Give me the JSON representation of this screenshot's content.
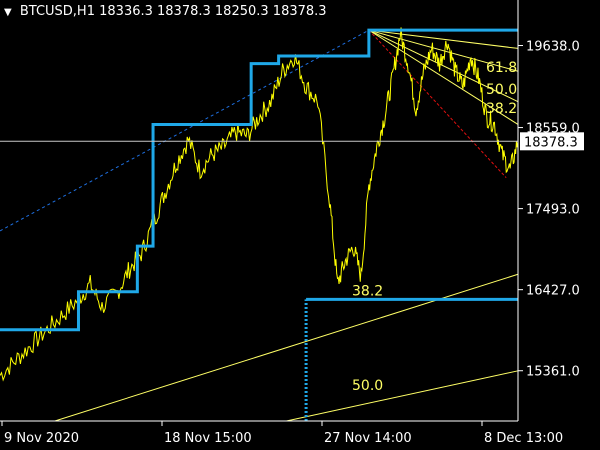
{
  "window": {
    "symbol_label": "BTCUSD,H1",
    "ohlc": "18336.3 18378.3 18250.3 18378.3",
    "menu_icon": "triangle-down-icon"
  },
  "colors": {
    "background": "#000000",
    "price": "#FFFF00",
    "step_line": "#1FA8E8",
    "trend_dash": "#1E6FE0",
    "fib_fan": "#FFFF66",
    "fan_red": "#E01010",
    "crosshair": "#C8C8C8",
    "axis_text": "#FFFFFF"
  },
  "chart_data": {
    "type": "line",
    "title": "BTCUSD,H1",
    "x_ticks": [
      "9 Nov 2020",
      "18 Nov 15:00",
      "27 Nov 14:00",
      "8 Dec 13:00"
    ],
    "y_ticks": [
      19638.0,
      18559.0,
      17493.0,
      16427.0,
      15361.0
    ],
    "ylim": [
      14700,
      20000
    ],
    "current_price": 18378.3,
    "price_series_key_points": [
      [
        0,
        15300
      ],
      [
        4,
        15500
      ],
      [
        8,
        15700
      ],
      [
        12,
        15900
      ],
      [
        16,
        16100
      ],
      [
        20,
        16300
      ],
      [
        23,
        16500
      ],
      [
        26,
        16200
      ],
      [
        30,
        16400
      ],
      [
        33,
        16700
      ],
      [
        36,
        16900
      ],
      [
        39,
        17300
      ],
      [
        42,
        17700
      ],
      [
        45,
        18100
      ],
      [
        48,
        18400
      ],
      [
        51,
        18000
      ],
      [
        54,
        18200
      ],
      [
        57,
        18300
      ],
      [
        60,
        18500
      ],
      [
        63,
        18450
      ],
      [
        66,
        18700
      ],
      [
        69,
        18900
      ],
      [
        72,
        19300
      ],
      [
        75,
        19500
      ],
      [
        78,
        19100
      ],
      [
        81,
        18900
      ],
      [
        84,
        17600
      ],
      [
        86,
        16500
      ],
      [
        88,
        16800
      ],
      [
        90,
        17000
      ],
      [
        92,
        16600
      ],
      [
        94,
        17800
      ],
      [
        96,
        18300
      ],
      [
        98,
        18700
      ],
      [
        100,
        19200
      ],
      [
        102,
        19800
      ],
      [
        104,
        19400
      ],
      [
        106,
        18800
      ],
      [
        108,
        19300
      ],
      [
        110,
        19600
      ],
      [
        112,
        19400
      ],
      [
        114,
        19700
      ],
      [
        116,
        19300
      ],
      [
        118,
        19100
      ],
      [
        120,
        19500
      ],
      [
        122,
        19200
      ],
      [
        124,
        18700
      ],
      [
        126,
        18600
      ],
      [
        128,
        18200
      ],
      [
        130,
        18000
      ],
      [
        132,
        18378.3
      ]
    ],
    "step_levels": [
      {
        "from": 0,
        "to": 20,
        "value": 15900
      },
      {
        "from": 20,
        "to": 35,
        "value": 16400
      },
      {
        "from": 35,
        "to": 39,
        "value": 17000
      },
      {
        "from": 39,
        "to": 64,
        "value": 18600
      },
      {
        "from": 64,
        "to": 71,
        "value": 19400
      },
      {
        "from": 71,
        "to": 94,
        "value": 19500
      },
      {
        "from": 94,
        "to": 132,
        "value": 19840
      }
    ],
    "dropline": {
      "x": 78,
      "from": 14700,
      "to": 16300
    },
    "support_level": {
      "from": 78,
      "to": 132,
      "value": 16300,
      "label": "38.2"
    },
    "channel_lines": [
      {
        "x1": 14,
        "y1": 14700,
        "x2": 132,
        "y2": 16630
      },
      {
        "x1": 73,
        "y1": 14700,
        "x2": 132,
        "y2": 15360
      }
    ],
    "channel_label_50": "50.0",
    "fib_fan_origin": {
      "x": 94,
      "y": 19840
    },
    "fib_fan_levels": [
      {
        "label": "61.8",
        "end": 19600
      },
      {
        "label": "50.0",
        "end": 19300
      },
      {
        "label": "38.2",
        "end": 18900
      }
    ],
    "fan_red_end": {
      "x": 129,
      "y": 17900
    },
    "dashed_trend": {
      "x1": 0,
      "y1": 17200,
      "x2": 94,
      "y2": 19840
    }
  }
}
